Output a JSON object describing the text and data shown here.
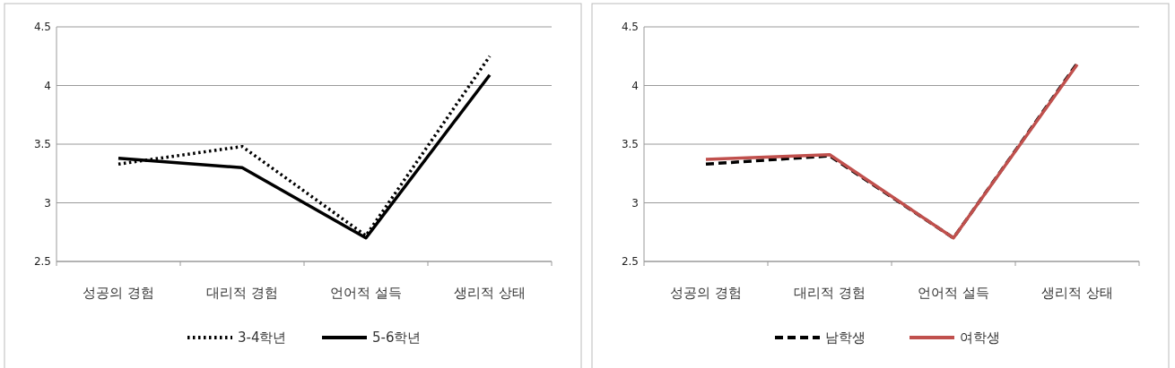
{
  "chart_data": [
    {
      "type": "line",
      "categories": [
        "성공의 경험",
        "대리적 경험",
        "언어적 설득",
        "생리적 상태"
      ],
      "ylim": [
        2.5,
        4.5
      ],
      "yticks": [
        {
          "value": 2.5,
          "label": "2.5"
        },
        {
          "value": 3,
          "label": "3"
        },
        {
          "value": 3.5,
          "label": "3.5"
        },
        {
          "value": 4,
          "label": "4"
        },
        {
          "value": 4.5,
          "label": "4.5"
        }
      ],
      "grid": "y",
      "legend": "bottom",
      "series": [
        {
          "name": "3-4학년",
          "color": "#000000",
          "line_style": "dotted",
          "values": [
            3.33,
            3.48,
            2.72,
            4.25
          ]
        },
        {
          "name": "5-6학년",
          "color": "#000000",
          "line_style": "solid",
          "values": [
            3.38,
            3.3,
            2.7,
            4.09
          ]
        }
      ]
    },
    {
      "type": "line",
      "categories": [
        "성공의 경험",
        "대리적 경험",
        "언어적 설득",
        "생리적 상태"
      ],
      "ylim": [
        2.5,
        4.5
      ],
      "yticks": [
        {
          "value": 2.5,
          "label": "2.5"
        },
        {
          "value": 3,
          "label": "3"
        },
        {
          "value": 3.5,
          "label": "3.5"
        },
        {
          "value": 4,
          "label": "4"
        },
        {
          "value": 4.5,
          "label": "4.5"
        }
      ],
      "grid": "y",
      "legend": "bottom",
      "series": [
        {
          "name": "남학생",
          "color": "#000000",
          "line_style": "dashed",
          "values": [
            3.33,
            3.4,
            2.7,
            4.19
          ]
        },
        {
          "name": "여학생",
          "color": "#c0504d",
          "line_style": "solid",
          "values": [
            3.37,
            3.41,
            2.7,
            4.18
          ]
        }
      ]
    }
  ]
}
